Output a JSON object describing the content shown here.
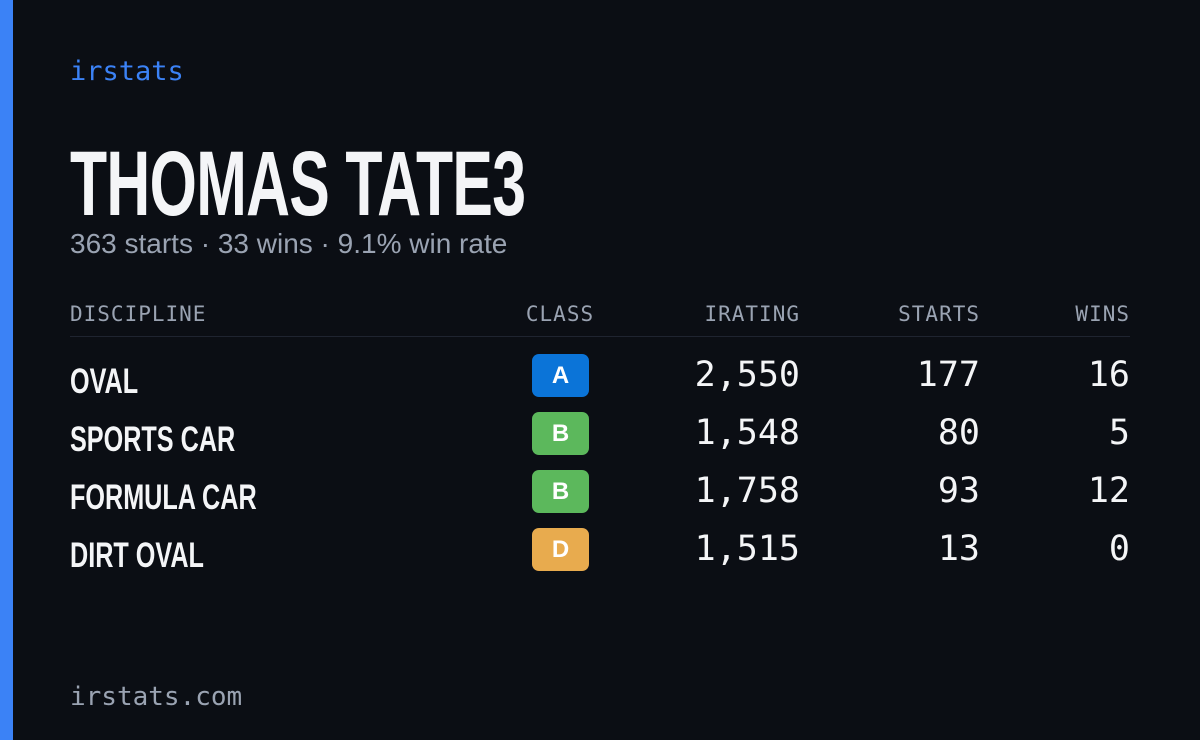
{
  "brand": "irstats",
  "title": "THOMAS TATE3",
  "subtitle": "363 starts · 33 wins · 9.1% win rate",
  "table": {
    "headers": [
      "DISCIPLINE",
      "CLASS",
      "IRATING",
      "STARTS",
      "WINS"
    ],
    "rows": [
      {
        "discipline": "OVAL",
        "class": "A",
        "badge_color": "#0b74d8",
        "irating": "2,550",
        "starts": "177",
        "wins": "16"
      },
      {
        "discipline": "SPORTS CAR",
        "class": "B",
        "badge_color": "#5cb85c",
        "irating": "1,548",
        "starts": "80",
        "wins": "5"
      },
      {
        "discipline": "FORMULA CAR",
        "class": "B",
        "badge_color": "#5cb85c",
        "irating": "1,758",
        "starts": "93",
        "wins": "12"
      },
      {
        "discipline": "DIRT OVAL",
        "class": "D",
        "badge_color": "#e8ab4e",
        "irating": "1,515",
        "starts": "13",
        "wins": "0"
      }
    ]
  },
  "footer": "irstats.com"
}
